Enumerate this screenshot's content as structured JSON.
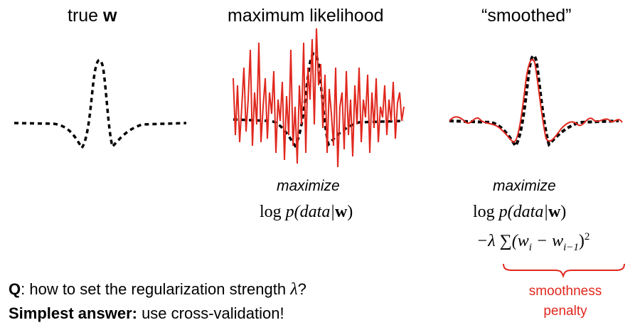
{
  "panels": {
    "true_w": {
      "title_prefix": "true ",
      "title_bold": "w"
    },
    "ml": {
      "title": "maximum likelihood",
      "objective_label": "maximize",
      "expr_log": "log",
      "expr_p": "p",
      "expr_args": "(data|",
      "expr_w": "w",
      "expr_close": ")"
    },
    "smoothed": {
      "title": "“smoothed”",
      "objective_label": "maximize",
      "expr_log": "log",
      "expr_p": "p",
      "expr_args": "(data|",
      "expr_w": "w",
      "expr_close": ")",
      "penalty_expr": "−λ ∑(w",
      "penalty_sub_i": "i",
      "penalty_minus": " − w",
      "penalty_sub_im1": "i−1",
      "penalty_close": ")",
      "penalty_sup": "2",
      "brace_label_line1": "smoothness",
      "brace_label_line2": "penalty"
    }
  },
  "bottom": {
    "q_bold": "Q",
    "q_text": ": how to set the regularization strength ",
    "q_lambda": "λ",
    "q_end": "?",
    "answer_bold": "Simplest answer:",
    "answer_text": " use cross-validation!"
  },
  "colors": {
    "red": "#e0281e",
    "black": "#000000"
  }
}
